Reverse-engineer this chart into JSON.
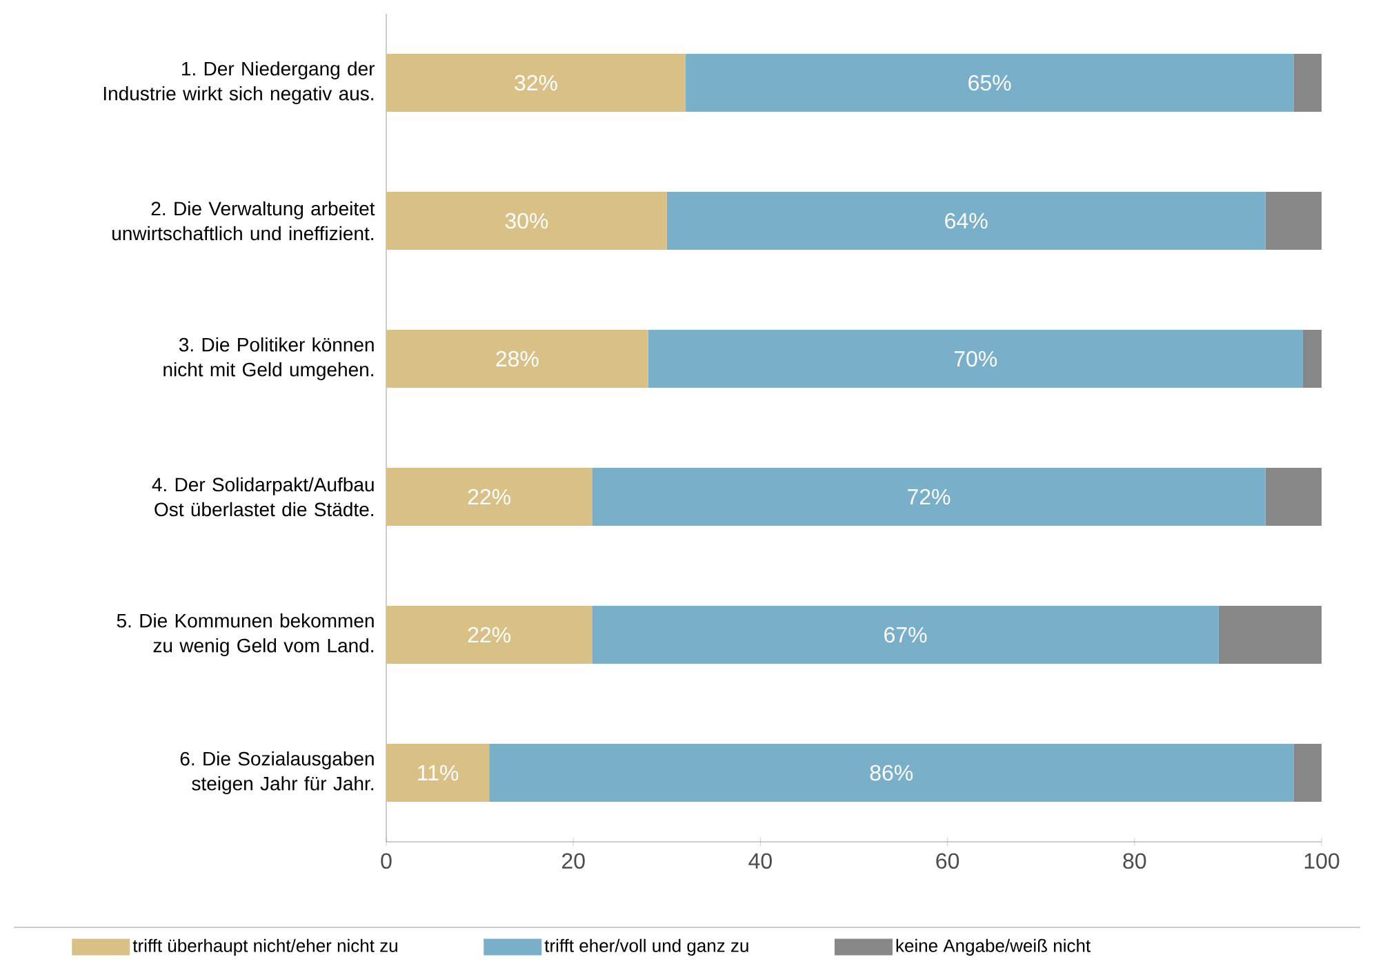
{
  "chart_data": {
    "type": "bar",
    "orientation": "horizontal",
    "stacked": true,
    "categories": [
      "1. Der Niedergang der Industrie wirkt sich negativ aus.",
      "2. Die Verwaltung arbeitet unwirtschaftlich und ineffizient.",
      "3. Die Politiker können nicht mit Geld umgehen.",
      "4. Der Solidarpakt/Aufbau Ost überlastet die Städte.",
      "5. Die Kommunen bekommen zu wenig Geld vom Land.",
      "6. Die Sozialausgaben steigen Jahr für Jahr."
    ],
    "series": [
      {
        "name": "trifft überhaupt nicht/eher nicht zu",
        "color": "#d9c086",
        "values": [
          32,
          30,
          28,
          22,
          22,
          11
        ],
        "value_labels": [
          "32%",
          "30%",
          "28%",
          "22%",
          "22%",
          "11%"
        ]
      },
      {
        "name": "trifft eher/voll und ganz zu",
        "color": "#7aafc9",
        "values": [
          65,
          64,
          70,
          72,
          67,
          86
        ],
        "value_labels": [
          "65%",
          "64%",
          "70%",
          "72%",
          "67%",
          "86%"
        ]
      },
      {
        "name": "keine Angabe/weiß nicht",
        "color": "#878787",
        "values": [
          3,
          6,
          2,
          6,
          11,
          3
        ]
      }
    ],
    "xlim": [
      0,
      100
    ],
    "xticks": [
      0,
      20,
      40,
      60,
      80,
      100
    ],
    "grid": false,
    "legend": "bottom"
  }
}
